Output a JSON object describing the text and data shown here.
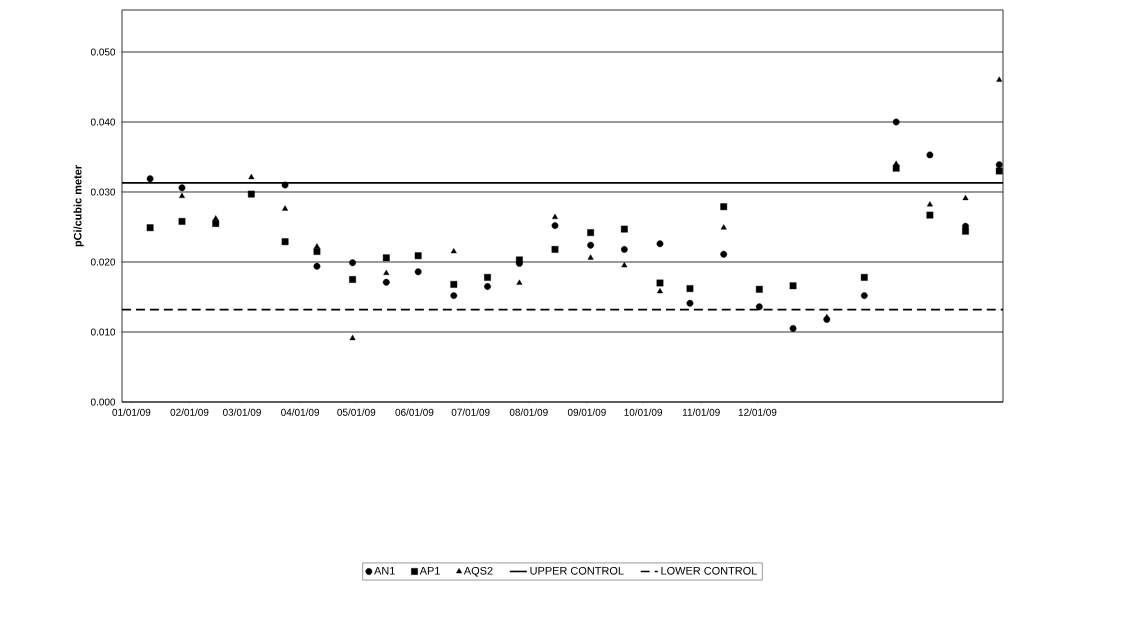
{
  "chart_data": {
    "type": "scatter",
    "ylabel": "pCi/cubic meter",
    "x": [
      "2009-01-11",
      "2009-01-28",
      "2009-02-15",
      "2009-03-06",
      "2009-03-24",
      "2009-04-10",
      "2009-04-29",
      "2009-05-17",
      "2009-06-03",
      "2009-06-22",
      "2009-07-10",
      "2009-07-27",
      "2009-08-15",
      "2009-09-03",
      "2009-09-21",
      "2009-10-10",
      "2009-10-26",
      "2009-11-13",
      "2009-12-02",
      "2009-12-20",
      "2010-01-07",
      "2010-01-27",
      "2010-02-13",
      "2010-03-03",
      "2010-03-22",
      "2010-04-09"
    ],
    "series": [
      {
        "name": "AN1",
        "color": "#000000",
        "marker": "circle",
        "values": [
          0.0319,
          0.0306,
          null,
          null,
          0.031,
          0.0194,
          0.0199,
          0.0171,
          0.0186,
          0.0152,
          0.0165,
          0.0198,
          0.0252,
          0.0224,
          0.0218,
          0.0226,
          0.0141,
          0.0211,
          0.0136,
          0.0105,
          0.0118,
          0.0152,
          0.04,
          0.0353,
          0.0251,
          0.0339
        ]
      },
      {
        "name": "AP1",
        "color": "#000000",
        "marker": "square",
        "values": [
          0.0249,
          0.0258,
          0.0255,
          0.0297,
          0.0229,
          0.0215,
          0.0175,
          0.0206,
          0.0209,
          0.0168,
          0.0178,
          0.0203,
          0.0218,
          0.0242,
          0.0247,
          0.017,
          0.0162,
          0.0279,
          0.0161,
          0.0166,
          null,
          0.0178,
          0.0334,
          0.0267,
          0.0244,
          0.033
        ]
      },
      {
        "name": "AQS2",
        "color": "#000000",
        "marker": "triangle",
        "values": [
          null,
          0.0294,
          0.0262,
          0.0321,
          0.0276,
          0.0222,
          0.0091,
          0.0184,
          null,
          0.0215,
          null,
          0.017,
          0.0264,
          0.0206,
          0.0195,
          0.0158,
          null,
          0.0249,
          null,
          null,
          0.0121,
          null,
          0.034,
          0.0282,
          0.0291,
          0.046
        ]
      }
    ],
    "ref_lines": [
      {
        "axis": "y",
        "value": 0.0313,
        "label": "UPPER CONTROL",
        "color": "#000000",
        "line_style": "solid"
      },
      {
        "axis": "y",
        "value": 0.0132,
        "label": "LOWER CONTROL",
        "color": "#000000",
        "line_style": "dashed"
      }
    ],
    "xlim": [
      "2008-12-27",
      "2010-04-11"
    ],
    "xticks": [
      {
        "value": "2009-01-01",
        "label": "01/01/09"
      },
      {
        "value": "2009-02-01",
        "label": "02/01/09"
      },
      {
        "value": "2009-03-01",
        "label": "03/01/09"
      },
      {
        "value": "2009-04-01",
        "label": "04/01/09"
      },
      {
        "value": "2009-05-01",
        "label": "05/01/09"
      },
      {
        "value": "2009-06-01",
        "label": "06/01/09"
      },
      {
        "value": "2009-07-01",
        "label": "07/01/09"
      },
      {
        "value": "2009-08-01",
        "label": "08/01/09"
      },
      {
        "value": "2009-09-01",
        "label": "09/01/09"
      },
      {
        "value": "2009-10-01",
        "label": "10/01/09"
      },
      {
        "value": "2009-11-01",
        "label": "11/01/09"
      },
      {
        "value": "2009-12-01",
        "label": "12/01/09"
      }
    ],
    "ylim": [
      0,
      0.056
    ],
    "yticks": [
      {
        "value": 0,
        "label": "0.000"
      },
      {
        "value": 0.01,
        "label": "0.010"
      },
      {
        "value": 0.02,
        "label": "0.020"
      },
      {
        "value": 0.03,
        "label": "0.030"
      },
      {
        "value": 0.04,
        "label": "0.040"
      },
      {
        "value": 0.05,
        "label": "0.050"
      }
    ],
    "grid": "y",
    "legend": "bottom"
  }
}
